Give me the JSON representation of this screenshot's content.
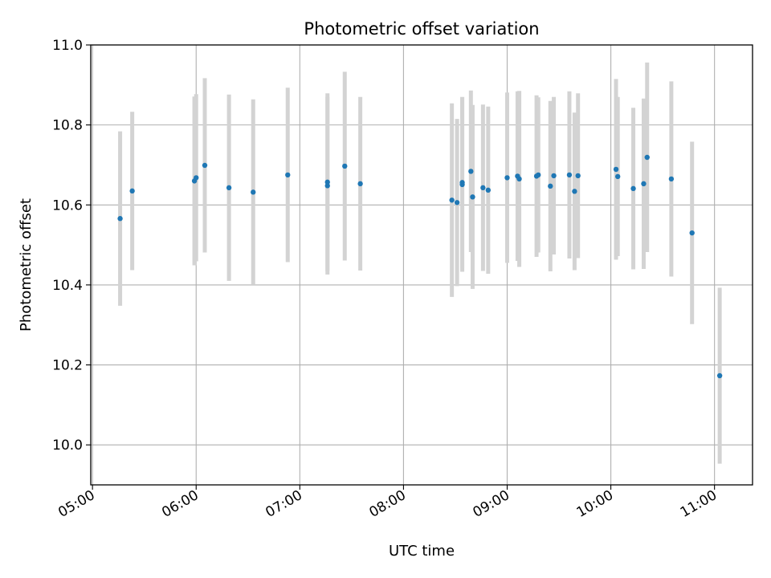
{
  "chart_data": {
    "type": "scatter",
    "title": "Photometric offset variation",
    "xlabel": "UTC time",
    "ylabel": "Photometric offset",
    "x_ticks": [
      "05:00",
      "06:00",
      "07:00",
      "08:00",
      "09:00",
      "10:00",
      "11:00"
    ],
    "y_ticks": [
      "10.0",
      "10.2",
      "10.4",
      "10.6",
      "10.8",
      "11.0"
    ],
    "xlim": [
      "04:59",
      "11:22"
    ],
    "ylim": [
      9.9,
      11.0
    ],
    "grid": true,
    "x_tick_rotation_deg": 30,
    "colors": {
      "point": "#1f77b4",
      "errorbar": "#d3d3d3",
      "grid": "#b0b0b0"
    },
    "series": [
      {
        "points": [
          {
            "t": "05:16",
            "y": 10.566,
            "err": 0.218
          },
          {
            "t": "05:23",
            "y": 10.635,
            "err": 0.198
          },
          {
            "t": "05:59",
            "y": 10.66,
            "err": 0.211
          },
          {
            "t": "06:00",
            "y": 10.668,
            "err": 0.209
          },
          {
            "t": "06:05",
            "y": 10.699,
            "err": 0.218
          },
          {
            "t": "06:19",
            "y": 10.643,
            "err": 0.233
          },
          {
            "t": "06:33",
            "y": 10.632,
            "err": 0.232
          },
          {
            "t": "06:53",
            "y": 10.675,
            "err": 0.218
          },
          {
            "t": "07:16",
            "y": 10.648,
            "err": 0.222
          },
          {
            "t": "07:16",
            "y": 10.657,
            "err": 0.222
          },
          {
            "t": "07:26",
            "y": 10.697,
            "err": 0.236
          },
          {
            "t": "07:35",
            "y": 10.653,
            "err": 0.217
          },
          {
            "t": "08:28",
            "y": 10.612,
            "err": 0.242
          },
          {
            "t": "08:31",
            "y": 10.606,
            "err": 0.209
          },
          {
            "t": "08:34",
            "y": 10.651,
            "err": 0.218
          },
          {
            "t": "08:34",
            "y": 10.656,
            "err": 0.214
          },
          {
            "t": "08:39",
            "y": 10.684,
            "err": 0.202
          },
          {
            "t": "08:40",
            "y": 10.62,
            "err": 0.23
          },
          {
            "t": "08:46",
            "y": 10.643,
            "err": 0.208
          },
          {
            "t": "08:49",
            "y": 10.637,
            "err": 0.209
          },
          {
            "t": "09:00",
            "y": 10.668,
            "err": 0.213
          },
          {
            "t": "09:06",
            "y": 10.672,
            "err": 0.212
          },
          {
            "t": "09:07",
            "y": 10.665,
            "err": 0.22
          },
          {
            "t": "09:17",
            "y": 10.672,
            "err": 0.202
          },
          {
            "t": "09:18",
            "y": 10.675,
            "err": 0.194
          },
          {
            "t": "09:25",
            "y": 10.647,
            "err": 0.213
          },
          {
            "t": "09:27",
            "y": 10.673,
            "err": 0.197
          },
          {
            "t": "09:36",
            "y": 10.675,
            "err": 0.209
          },
          {
            "t": "09:39",
            "y": 10.634,
            "err": 0.197
          },
          {
            "t": "09:41",
            "y": 10.673,
            "err": 0.206
          },
          {
            "t": "10:03",
            "y": 10.689,
            "err": 0.226
          },
          {
            "t": "10:04",
            "y": 10.671,
            "err": 0.199
          },
          {
            "t": "10:13",
            "y": 10.641,
            "err": 0.202
          },
          {
            "t": "10:19",
            "y": 10.653,
            "err": 0.213
          },
          {
            "t": "10:21",
            "y": 10.719,
            "err": 0.237
          },
          {
            "t": "10:35",
            "y": 10.665,
            "err": 0.244
          },
          {
            "t": "10:47",
            "y": 10.53,
            "err": 0.228
          },
          {
            "t": "11:03",
            "y": 10.173,
            "err": 0.22
          }
        ]
      }
    ]
  }
}
